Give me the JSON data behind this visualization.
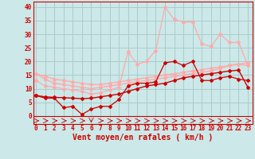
{
  "background_color": "#cce8e8",
  "grid_color": "#aacccc",
  "xlabel": "Vent moyen/en rafales ( km/h )",
  "xlabel_color": "#cc0000",
  "xlabel_fontsize": 7,
  "tick_color": "#cc0000",
  "tick_fontsize": 5.5,
  "yticks": [
    0,
    5,
    10,
    15,
    20,
    25,
    30,
    35,
    40
  ],
  "xticks": [
    0,
    1,
    2,
    3,
    4,
    5,
    6,
    7,
    8,
    9,
    10,
    11,
    12,
    13,
    14,
    15,
    16,
    17,
    18,
    19,
    20,
    21,
    22,
    23
  ],
  "xlim": [
    -0.3,
    23.5
  ],
  "ylim": [
    -3,
    42
  ],
  "lines": [
    {
      "x": [
        0,
        1,
        2,
        3,
        4,
        5,
        6,
        7,
        8,
        9,
        10,
        11,
        12,
        13,
        14,
        15,
        16,
        17,
        18,
        19,
        20,
        21,
        22,
        23
      ],
      "y": [
        15.5,
        14.5,
        13.5,
        13.0,
        12.5,
        12.0,
        11.5,
        11.5,
        12.0,
        12.5,
        13.0,
        13.5,
        14.0,
        14.5,
        15.0,
        15.5,
        16.0,
        16.5,
        17.0,
        17.5,
        18.0,
        18.5,
        19.0,
        19.5
      ],
      "color": "#ffaaaa",
      "lw": 1.0,
      "marker": "D",
      "ms": 2.0,
      "alpha": 1.0
    },
    {
      "x": [
        0,
        1,
        2,
        3,
        4,
        5,
        6,
        7,
        8,
        9,
        10,
        11,
        12,
        13,
        14,
        15,
        16,
        17,
        18,
        19,
        20,
        21,
        22,
        23
      ],
      "y": [
        15.5,
        13.5,
        12.0,
        11.5,
        11.0,
        10.5,
        10.0,
        10.5,
        11.0,
        11.5,
        12.0,
        12.5,
        13.0,
        13.5,
        14.0,
        14.5,
        15.0,
        15.5,
        16.0,
        16.5,
        17.5,
        18.5,
        19.0,
        18.5
      ],
      "color": "#ffaaaa",
      "lw": 1.0,
      "marker": "D",
      "ms": 2.0,
      "alpha": 1.0
    },
    {
      "x": [
        0,
        1,
        2,
        3,
        4,
        5,
        6,
        7,
        8,
        9,
        10,
        11,
        12,
        13,
        14,
        15,
        16,
        17,
        18,
        19,
        20,
        21,
        22,
        23
      ],
      "y": [
        13.0,
        11.0,
        10.5,
        10.0,
        9.5,
        9.0,
        8.0,
        8.5,
        9.5,
        10.5,
        23.5,
        19.0,
        20.0,
        24.0,
        40.0,
        35.5,
        34.5,
        34.5,
        26.5,
        25.5,
        30.0,
        27.0,
        27.0,
        18.5
      ],
      "color": "#ffaaaa",
      "lw": 0.9,
      "marker": "D",
      "ms": 2.0,
      "alpha": 1.0
    },
    {
      "x": [
        0,
        1,
        2,
        3,
        4,
        5,
        6,
        7,
        8,
        9,
        10,
        11,
        12,
        13,
        14,
        15,
        16,
        17,
        18,
        19,
        20,
        21,
        22,
        23
      ],
      "y": [
        7.5,
        7.0,
        6.8,
        6.7,
        6.5,
        6.3,
        6.5,
        7.0,
        7.5,
        8.0,
        9.0,
        10.0,
        11.0,
        11.5,
        12.0,
        13.0,
        14.0,
        14.5,
        15.0,
        15.5,
        16.0,
        16.5,
        16.8,
        10.5
      ],
      "color": "#cc0000",
      "lw": 1.0,
      "marker": "D",
      "ms": 2.0,
      "alpha": 1.0
    },
    {
      "x": [
        0,
        1,
        2,
        3,
        4,
        5,
        6,
        7,
        8,
        9,
        10,
        11,
        12,
        13,
        14,
        15,
        16,
        17,
        18,
        19,
        20,
        21,
        22,
        23
      ],
      "y": [
        7.5,
        6.5,
        6.5,
        3.0,
        3.5,
        0.5,
        2.5,
        3.5,
        3.5,
        6.0,
        11.0,
        12.0,
        12.0,
        12.5,
        19.5,
        20.0,
        18.5,
        20.0,
        13.0,
        13.0,
        14.0,
        14.5,
        13.5,
        13.0
      ],
      "color": "#cc0000",
      "lw": 0.9,
      "marker": "D",
      "ms": 2.0,
      "alpha": 1.0
    }
  ]
}
